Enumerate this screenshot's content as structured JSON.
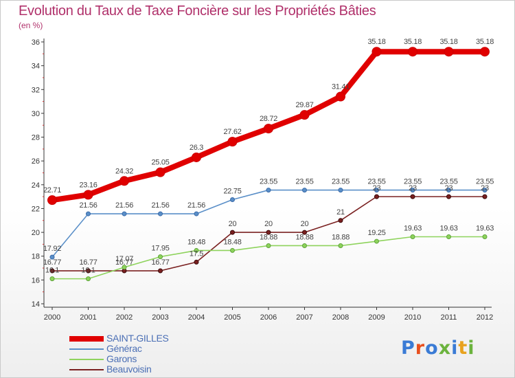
{
  "header": {
    "title": "Evolution du Taux de Taxe Foncière sur les Propriétés Bâties",
    "subtitle": "(en %)"
  },
  "logo": {
    "text": "Proxiti",
    "letter_colors": [
      "#3a7bd5",
      "#e8501e",
      "#3a7bd5",
      "#6bb33d",
      "#3a7bd5",
      "#e8a21e",
      "#6bb33d"
    ]
  },
  "chart_data": {
    "type": "line",
    "title": "Evolution du Taux de Taxe Foncière sur les Propriétés Bâties",
    "subtitle": "(en %)",
    "xlabel": "",
    "ylabel": "",
    "x": [
      "2000",
      "2001",
      "2002",
      "2003",
      "2004",
      "2005",
      "2006",
      "2007",
      "2008",
      "2009",
      "2010",
      "2011",
      "2012"
    ],
    "ylim": [
      14,
      36
    ],
    "yticks": [
      14,
      16,
      18,
      20,
      22,
      24,
      26,
      28,
      30,
      32,
      34,
      36
    ],
    "grid": false,
    "legend_position": "bottom-left",
    "series": [
      {
        "name": "SAINT-GILLES",
        "color": "#e00000",
        "values": [
          22.71,
          23.16,
          24.32,
          25.05,
          26.3,
          27.62,
          28.72,
          29.87,
          31.41,
          35.18,
          35.18,
          35.18,
          35.18
        ],
        "labels": [
          "22.71",
          "23.16",
          "24.32",
          "25.05",
          "26.3",
          "27.62",
          "28.72",
          "29.87",
          "31.41",
          "35.18",
          "35.18",
          "35.18",
          "35.18"
        ]
      },
      {
        "name": "Générac",
        "color": "#5a8fc8",
        "values": [
          17.92,
          21.56,
          21.56,
          21.56,
          21.56,
          22.75,
          23.55,
          23.55,
          23.55,
          23.55,
          23.55,
          23.55,
          23.55
        ],
        "labels": [
          "17.92",
          "21.56",
          "21.56",
          "21.56",
          "21.56",
          "22.75",
          "23.55",
          "23.55",
          "23.55",
          "23.55",
          "23.55",
          "23.55",
          "23.55"
        ]
      },
      {
        "name": "Garons",
        "color": "#8ed35c",
        "values": [
          16.1,
          16.1,
          17.07,
          17.95,
          18.48,
          18.48,
          18.88,
          18.88,
          18.88,
          19.25,
          19.63,
          19.63,
          19.63
        ],
        "labels": [
          "16.1",
          "16.1",
          "17.07",
          "17.95",
          "18.48",
          "18.48",
          "18.88",
          "18.88",
          "18.88",
          "19.25",
          "19.63",
          "19.63",
          "19.63"
        ]
      },
      {
        "name": "Beauvoisin",
        "color": "#7a2020",
        "values": [
          16.77,
          16.77,
          16.77,
          16.77,
          17.5,
          20,
          20,
          20,
          21,
          23,
          23,
          23,
          23
        ],
        "labels": [
          "16.77",
          "16.77",
          "16.77",
          "16.77",
          "17.5",
          "20",
          "20",
          "20",
          "21",
          "23",
          "23",
          "23",
          "23"
        ]
      }
    ]
  }
}
